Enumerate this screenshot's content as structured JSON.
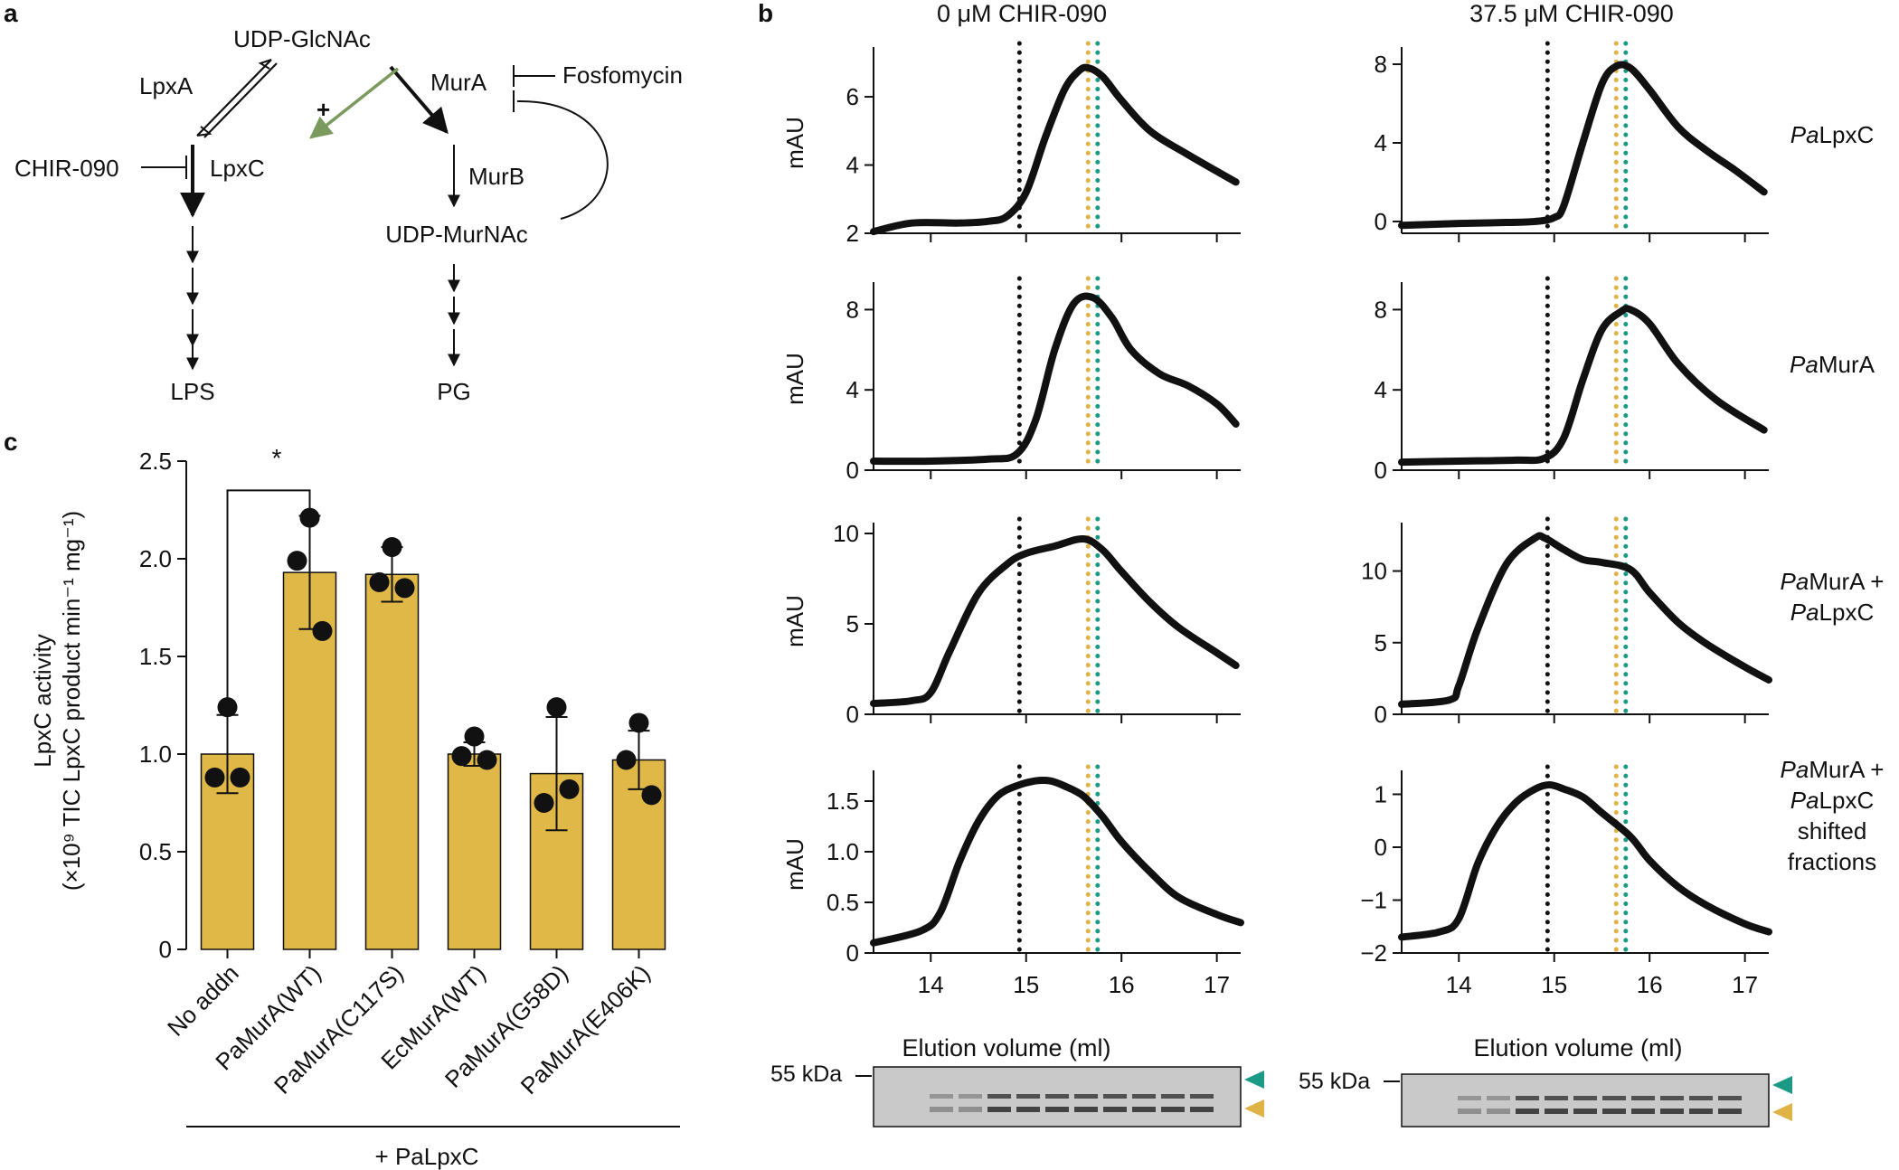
{
  "panel_labels": {
    "a": "a",
    "b": "b",
    "c": "c"
  },
  "pathway": {
    "udp_glcnac": "UDP-GlcNAc",
    "lpxa": "LpxA",
    "lpxc": "LpxC",
    "chir090": "CHIR-090",
    "mura": "MurA",
    "fosfomycin": "Fosfomycin",
    "murb": "MurB",
    "udp_murnac": "UDP-MurNAc",
    "plus": "+",
    "lps": "LPS",
    "pg": "PG"
  },
  "colors": {
    "bar": "#dfb847",
    "teal": "#1a9a85",
    "gold": "#e0b347",
    "trace": "#111111",
    "activation_arrow": "#7a9a5e"
  },
  "chart_data": [
    {
      "type": "bar",
      "panel": "c",
      "categories": [
        "No addn",
        "PaMurA(WT)",
        "PaMurA(C117S)",
        "EcMurA(WT)",
        "PaMurA(G58D)",
        "PaMurA(E406K)"
      ],
      "values": [
        1.0,
        1.93,
        1.92,
        1.0,
        0.9,
        0.97
      ],
      "error": [
        0.2,
        0.29,
        0.14,
        0.06,
        0.29,
        0.15
      ],
      "points": [
        [
          1.24,
          0.88,
          0.88
        ],
        [
          2.21,
          1.99,
          1.63
        ],
        [
          2.06,
          1.88,
          1.85
        ],
        [
          1.09,
          0.99,
          0.97
        ],
        [
          1.24,
          0.75,
          0.82
        ],
        [
          1.16,
          0.97,
          0.79
        ]
      ],
      "ylabel_line1": "LpxC activity",
      "ylabel_line2": "(×10⁹ TIC LpxC product min⁻¹ mg⁻¹)",
      "yticks": [
        "0",
        "0.5",
        "1.0",
        "1.5",
        "2.0",
        "2.5"
      ],
      "ylim": [
        0,
        2.5
      ],
      "significance": "*",
      "footer": "+ PaLpxC"
    },
    {
      "type": "line",
      "panel": "b",
      "column_titles": [
        "0 μM CHIR-090",
        "37.5 μM CHIR-090"
      ],
      "row_labels": [
        [
          "PaLpxC"
        ],
        [
          "PaMurA"
        ],
        [
          "PaMurA +",
          "PaLpxC"
        ],
        [
          "PaMurA +",
          "PaLpxC",
          "shifted",
          "fractions"
        ]
      ],
      "ylabel": "mAU",
      "xlabel": "Elution volume (ml)",
      "xlim": [
        13.4,
        17.25
      ],
      "xticks": [
        "14",
        "15",
        "16",
        "17"
      ],
      "reference_lines": {
        "black": 14.93,
        "gold": 15.65,
        "teal": 15.75
      },
      "gel_marker": "55 kDa",
      "plots": [
        {
          "ylim": [
            2,
            7.3
          ],
          "yticks": [
            "2",
            "4",
            "6"
          ],
          "x": [
            13.4,
            13.8,
            14.3,
            14.6,
            14.8,
            15.0,
            15.2,
            15.4,
            15.55,
            15.65,
            15.8,
            16.0,
            16.3,
            16.7,
            17.2
          ],
          "y": [
            2.05,
            2.3,
            2.3,
            2.35,
            2.5,
            3.2,
            4.8,
            6.2,
            6.75,
            6.85,
            6.6,
            5.9,
            5.0,
            4.3,
            3.5
          ]
        },
        {
          "ylim": [
            -0.6,
            8.6
          ],
          "yticks": [
            "0",
            "4",
            "8"
          ],
          "x": [
            13.4,
            14.0,
            14.5,
            14.8,
            15.0,
            15.1,
            15.3,
            15.5,
            15.65,
            15.8,
            16.0,
            16.3,
            16.6,
            16.9,
            17.2
          ],
          "y": [
            -0.2,
            -0.1,
            -0.05,
            0.0,
            0.2,
            0.8,
            4.0,
            7.0,
            7.9,
            7.8,
            6.7,
            4.8,
            3.6,
            2.6,
            1.5
          ]
        },
        {
          "ylim": [
            0,
            9.1
          ],
          "yticks": [
            "0",
            "4",
            "8"
          ],
          "x": [
            13.4,
            14.0,
            14.6,
            14.9,
            15.1,
            15.3,
            15.5,
            15.7,
            15.9,
            16.1,
            16.4,
            16.7,
            17.0,
            17.2
          ],
          "y": [
            0.45,
            0.45,
            0.55,
            0.8,
            2.5,
            6.0,
            8.3,
            8.6,
            7.6,
            6.0,
            4.8,
            4.2,
            3.3,
            2.3
          ]
        },
        {
          "ylim": [
            0,
            9.1
          ],
          "yticks": [
            "0",
            "4",
            "8"
          ],
          "x": [
            13.4,
            14.0,
            14.6,
            14.9,
            15.1,
            15.3,
            15.5,
            15.7,
            15.8,
            16.0,
            16.3,
            16.7,
            17.2
          ],
          "y": [
            0.4,
            0.45,
            0.5,
            0.6,
            1.6,
            4.5,
            7.0,
            7.9,
            8.0,
            7.3,
            5.3,
            3.5,
            2.0
          ]
        },
        {
          "ylim": [
            0,
            10.3
          ],
          "yticks": [
            "0",
            "5",
            "10"
          ],
          "x": [
            13.4,
            13.8,
            14.0,
            14.2,
            14.5,
            14.8,
            15.0,
            15.3,
            15.6,
            15.8,
            16.0,
            16.3,
            16.6,
            17.0,
            17.2
          ],
          "y": [
            0.6,
            0.75,
            1.2,
            3.5,
            6.7,
            8.3,
            8.9,
            9.3,
            9.7,
            9.1,
            7.9,
            6.2,
            4.8,
            3.4,
            2.7
          ]
        },
        {
          "ylim": [
            0,
            13
          ],
          "yticks": [
            "0",
            "5",
            "10"
          ],
          "x": [
            13.4,
            13.9,
            14.0,
            14.2,
            14.5,
            14.8,
            14.9,
            15.1,
            15.3,
            15.5,
            15.8,
            16.0,
            16.3,
            16.6,
            17.0,
            17.25
          ],
          "y": [
            0.7,
            1.0,
            2.0,
            6.0,
            10.5,
            12.3,
            12.3,
            11.5,
            10.8,
            10.6,
            10.1,
            8.5,
            6.4,
            4.9,
            3.3,
            2.4
          ]
        },
        {
          "ylim": [
            0,
            1.75
          ],
          "yticks": [
            "0",
            "0.5",
            "1.0",
            "1.5"
          ],
          "x": [
            13.4,
            13.9,
            14.1,
            14.3,
            14.5,
            14.7,
            14.9,
            15.1,
            15.25,
            15.4,
            15.6,
            15.8,
            16.0,
            16.3,
            16.6,
            17.0,
            17.25
          ],
          "y": [
            0.1,
            0.22,
            0.4,
            0.9,
            1.3,
            1.55,
            1.65,
            1.7,
            1.7,
            1.65,
            1.55,
            1.35,
            1.1,
            0.8,
            0.55,
            0.38,
            0.3
          ]
        },
        {
          "ylim": [
            -2,
            1.35
          ],
          "yticks": [
            "−2",
            "−1",
            "0",
            "1"
          ],
          "x": [
            13.4,
            13.8,
            14.0,
            14.2,
            14.4,
            14.6,
            14.8,
            14.95,
            15.1,
            15.3,
            15.5,
            15.8,
            16.0,
            16.3,
            16.6,
            17.0,
            17.25
          ],
          "y": [
            -1.7,
            -1.6,
            -1.35,
            -0.3,
            0.4,
            0.85,
            1.1,
            1.18,
            1.1,
            0.95,
            0.65,
            0.2,
            -0.25,
            -0.75,
            -1.1,
            -1.45,
            -1.6
          ]
        }
      ]
    }
  ]
}
